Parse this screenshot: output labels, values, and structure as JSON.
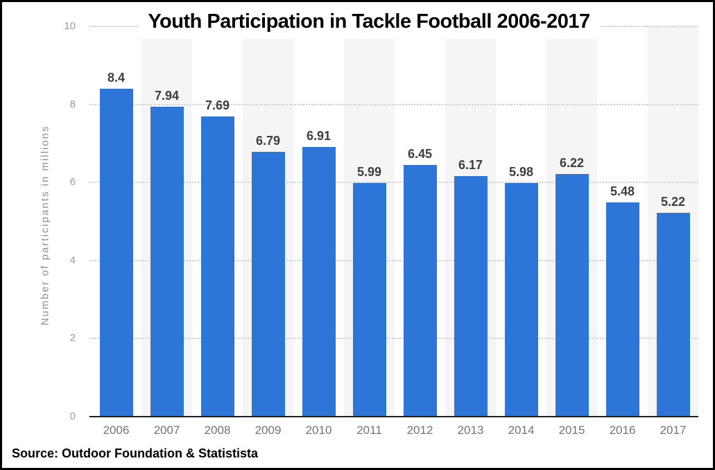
{
  "chart_data": {
    "type": "bar",
    "title": "Youth Participation in Tackle Football 2006-2017",
    "categories": [
      "2006",
      "2007",
      "2008",
      "2009",
      "2010",
      "2011",
      "2012",
      "2013",
      "2014",
      "2015",
      "2016",
      "2017"
    ],
    "values": [
      8.4,
      7.94,
      7.69,
      6.79,
      6.91,
      5.99,
      6.45,
      6.17,
      5.98,
      6.22,
      5.48,
      5.22
    ],
    "value_labels": [
      "8.4",
      "7.94",
      "7.69",
      "6.79",
      "6.91",
      "5.99",
      "6.45",
      "6.17",
      "5.98",
      "6.22",
      "5.48",
      "5.22"
    ],
    "xlabel": "",
    "ylabel": "Number of participants in millions",
    "ylim": [
      0,
      10
    ],
    "yticks": [
      0,
      2,
      4,
      6,
      8,
      10
    ],
    "ytick_labels": [
      "0",
      "2",
      "4",
      "6",
      "8",
      "10"
    ],
    "grid": "horizontal-dotted",
    "legend": "none",
    "colors": {
      "bar": "#2d76d8",
      "stripe": "#f5f5f5",
      "gridline": "#cbcbcb",
      "axis_line": "#1f1f1f",
      "value_label": "#3d3d3d",
      "x_tick_label": "#737373",
      "y_tick_label": "#9c9c9c",
      "y_axis_title": "#8f8f8f",
      "title": "#000000",
      "frame_border": "#000000"
    }
  },
  "source": {
    "text": "Source: Outdoor Foundation & Statistista"
  }
}
